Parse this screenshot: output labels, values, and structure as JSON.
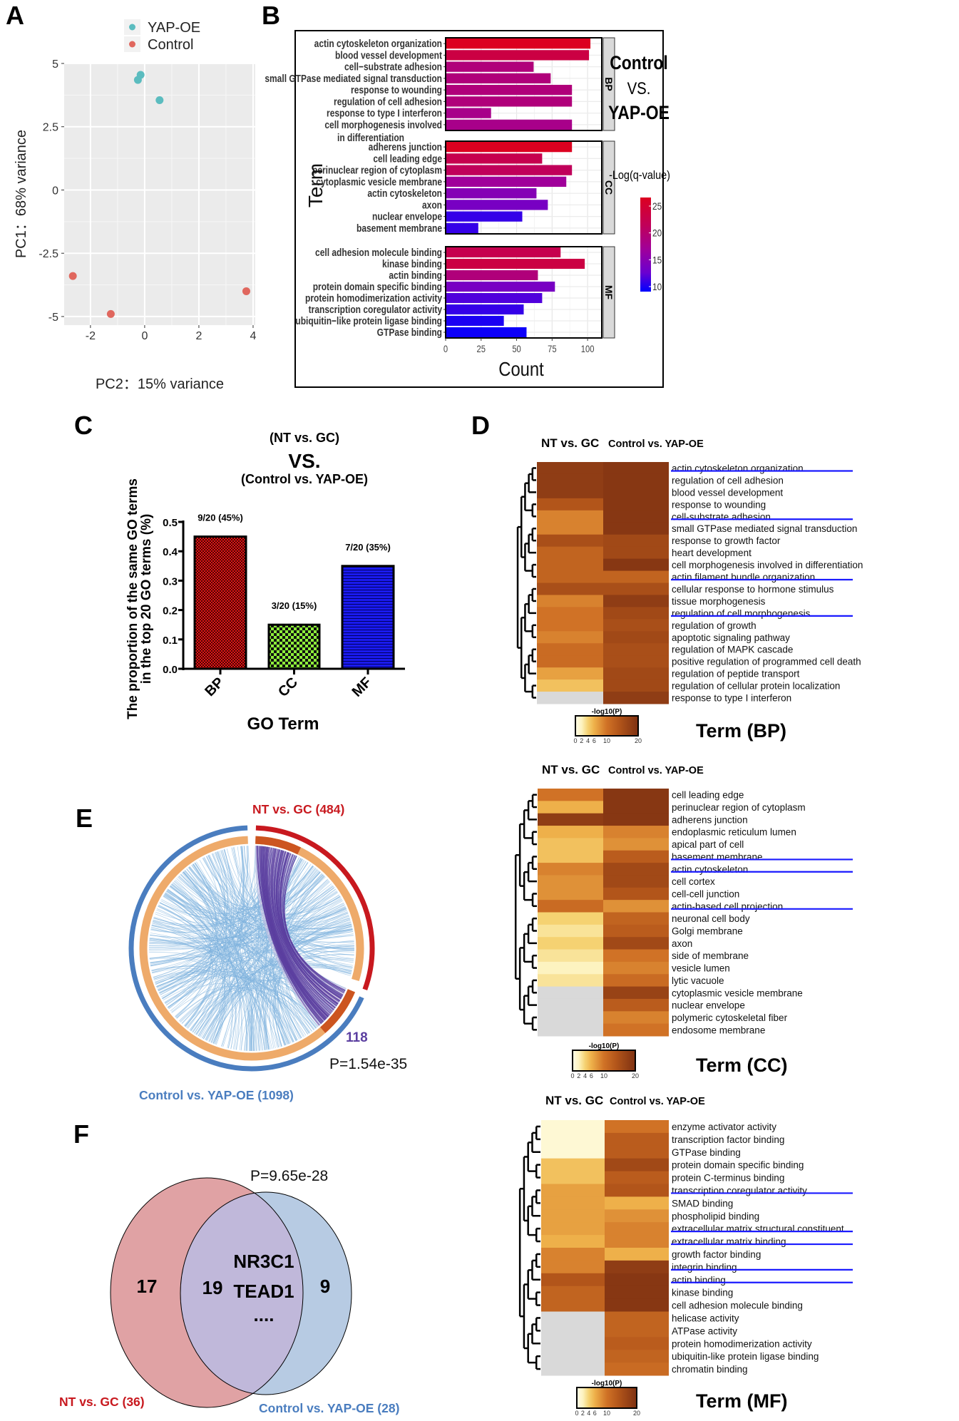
{
  "panel_labels": [
    "A",
    "B",
    "C",
    "D",
    "E",
    "F"
  ],
  "chart_data": [
    {
      "type": "scatter",
      "xlabel": "PC2：15% variance",
      "ylabel": "PC1：68% variance",
      "xlim": [
        -2.97,
        4.08
      ],
      "ylim": [
        -5.34,
        5.0
      ],
      "xticks": [
        "-2",
        "0",
        "2",
        "4"
      ],
      "yticks": [
        "5",
        "2.5",
        "0",
        "-2.5",
        "-5"
      ],
      "legend": [
        {
          "name": "YAP-OE",
          "color": "#5bbcbf"
        },
        {
          "name": "Control",
          "color": "#e0675e"
        }
      ],
      "series": [
        {
          "name": "YAP-OE",
          "points": [
            [
              -0.15,
              4.55
            ],
            [
              -0.25,
              4.35
            ],
            [
              0.55,
              3.55
            ]
          ]
        },
        {
          "name": "Control",
          "points": [
            [
              -2.65,
              -3.4
            ],
            [
              -1.25,
              -4.9
            ],
            [
              3.75,
              -4.0
            ]
          ]
        }
      ]
    },
    {
      "type": "bar",
      "orientation": "horizontal",
      "title_lines": [
        "Control",
        "VS.",
        "YAP-OE"
      ],
      "xlabel": "Count",
      "ylabel": "Term",
      "xlim": [
        0,
        110
      ],
      "xticks": [
        "0",
        "25",
        "50",
        "75",
        "100"
      ],
      "colorbar": {
        "title": "-Log(q-value)",
        "ticks": [
          "25",
          "20",
          "15",
          "10"
        ],
        "range": [
          9,
          26.5
        ]
      },
      "facets": [
        {
          "name": "BP",
          "terms": [
            "actin cytoskeleton organization",
            "blood vessel development",
            "cell−substrate adhesion",
            "small GTPase mediated signal transduction",
            "response to wounding",
            "regulation of cell adhesion",
            "response to type I interferon",
            [
              "cell morphogenesis involved",
              "in differentiation"
            ]
          ],
          "counts": [
            102,
            101,
            62,
            74,
            89,
            89,
            32,
            89
          ],
          "qvalues": [
            26,
            23,
            19,
            19,
            19,
            19,
            18,
            18
          ]
        },
        {
          "name": "CC",
          "terms": [
            "adherens junction",
            "cell leading edge",
            "perinuclear region of cytoplasm",
            "cytoplasmic vesicle membrane",
            "actin cytoskeleton",
            "axon",
            "nuclear envelope",
            "basement membrane"
          ],
          "counts": [
            89,
            68,
            89,
            85,
            64,
            72,
            54,
            23
          ],
          "qvalues": [
            26,
            22,
            21,
            17,
            15,
            14,
            11,
            11
          ]
        },
        {
          "name": "MF",
          "terms": [
            "cell adhesion molecule binding",
            "kinase binding",
            "actin binding",
            "protein domain specific binding",
            "protein homodimerization activity",
            "transcription coregulator activity",
            "ubiquitin−like protein ligase binding",
            "GTPase binding"
          ],
          "counts": [
            81,
            98,
            65,
            77,
            68,
            55,
            41,
            57
          ],
          "qvalues": [
            22,
            23,
            19,
            14,
            12,
            11,
            10,
            9.5
          ]
        }
      ]
    },
    {
      "type": "bar",
      "title_lines": [
        "(NT vs. GC)",
        "VS.",
        "(Control vs. YAP-OE)"
      ],
      "ylabel_lines": [
        "The proportion of the same GO terms",
        "in the top 20 GO terms (%)"
      ],
      "xlabel": "GO Term",
      "categories": [
        "BP",
        "CC",
        "MF"
      ],
      "values": [
        0.45,
        0.15,
        0.35
      ],
      "data_labels": [
        "9/20 (45%)",
        "3/20 (15%)",
        "7/20 (35%)"
      ],
      "colors": [
        "#e01818",
        "#8ef03a",
        "#1a1aee"
      ],
      "ylim": [
        0,
        0.5
      ],
      "yticks": [
        "0.0",
        "0.1",
        "0.2",
        "0.3",
        "0.4",
        "0.5"
      ]
    },
    {
      "type": "heatmap",
      "columns": [
        "NT vs. GC",
        "Control vs. YAP-OE"
      ],
      "colorbar": {
        "title": "-log10(P)",
        "ticks": [
          "0",
          "2",
          "4",
          "6",
          "10",
          "20"
        ],
        "range": [
          0,
          20
        ]
      },
      "panels": [
        {
          "title": "Term (BP)",
          "rows": [
            "actin cytoskeleton organization",
            "regulation of cell adhesion",
            "blood vessel development",
            "response to wounding",
            "cell-substrate adhesion",
            "small GTPase mediated signal transduction",
            "response to growth factor",
            "heart development",
            "cell morphogenesis involved in differentiation",
            "actin filament bundle organization",
            "cellular response to hormone stimulus",
            "tissue morphogenesis",
            "regulation of cell morphogenesis",
            "regulation of growth",
            "apoptotic signaling pathway",
            "regulation of MAPK cascade",
            "positive regulation of programmed cell death",
            "regulation of peptide transport",
            "regulation of cellular protein localization",
            "response to type I interferon"
          ],
          "values": [
            [
              18,
              19
            ],
            [
              18,
              19
            ],
            [
              18,
              19
            ],
            [
              14,
              19
            ],
            [
              9,
              19
            ],
            [
              9,
              19
            ],
            [
              15,
              16
            ],
            [
              12,
              16
            ],
            [
              12,
              19
            ],
            [
              12,
              12
            ],
            [
              15,
              15
            ],
            [
              9,
              18
            ],
            [
              10,
              16
            ],
            [
              10,
              15
            ],
            [
              9,
              16
            ],
            [
              11,
              15
            ],
            [
              11,
              15
            ],
            [
              7,
              16
            ],
            [
              5,
              16
            ],
            [
              null,
              18
            ]
          ],
          "highlighted": [
            0,
            4,
            9,
            12
          ]
        },
        {
          "title": "Term (CC)",
          "rows": [
            "cell leading edge",
            "perinuclear region of cytoplasm",
            "adherens junction",
            "endoplasmic reticulum lumen",
            "apical part of cell",
            "basement membrane",
            "actin cytoskeleton",
            "cell cortex",
            "cell-cell junction",
            "actin-based cell projection",
            "neuronal cell body",
            "Golgi membrane",
            "axon",
            "side of membrane",
            "vesicle lumen",
            "lytic vacuole",
            "cytoplasmic vesicle membrane",
            "nuclear envelope",
            "polymeric cytoskeletal fiber",
            "endosome membrane"
          ],
          "values": [
            [
              10,
              19
            ],
            [
              6,
              19
            ],
            [
              18,
              19
            ],
            [
              6,
              9
            ],
            [
              5,
              8
            ],
            [
              5,
              13
            ],
            [
              9,
              16
            ],
            [
              8,
              16
            ],
            [
              8,
              14
            ],
            [
              11,
              8
            ],
            [
              4,
              12
            ],
            [
              3,
              13
            ],
            [
              4,
              16
            ],
            [
              3,
              10
            ],
            [
              2,
              9
            ],
            [
              3,
              11
            ],
            [
              null,
              17
            ],
            [
              null,
              13
            ],
            [
              null,
              9
            ],
            [
              null,
              10
            ]
          ],
          "highlighted": [
            5,
            6,
            9
          ]
        },
        {
          "title": "Term (MF)",
          "rows": [
            "enzyme activator activity",
            "transcription factor binding",
            "GTPase binding",
            "protein domain specific binding",
            "protein C-terminus binding",
            "transcription coregulator activity",
            "SMAD binding",
            "phospholipid binding",
            "extracellular matrix structural constituent",
            "extracellular matrix binding",
            "growth factor binding",
            "integrin binding",
            "actin binding",
            "kinase binding",
            "cell adhesion molecule binding",
            "helicase activity",
            "ATPase activity",
            "protein homodimerization activity",
            "ubiquitin-like protein ligase binding",
            "chromatin binding"
          ],
          "values": [
            [
              1,
              10
            ],
            [
              1,
              13
            ],
            [
              1,
              13
            ],
            [
              5,
              16
            ],
            [
              5,
              13
            ],
            [
              7,
              14
            ],
            [
              7,
              6
            ],
            [
              7,
              8
            ],
            [
              7,
              9
            ],
            [
              6,
              9
            ],
            [
              9,
              6
            ],
            [
              9,
              18
            ],
            [
              14,
              19
            ],
            [
              12,
              19
            ],
            [
              12,
              19
            ],
            [
              null,
              12
            ],
            [
              null,
              12
            ],
            [
              null,
              13
            ],
            [
              null,
              12
            ],
            [
              null,
              11
            ]
          ],
          "highlighted": [
            5,
            8,
            9,
            11,
            12
          ]
        }
      ]
    },
    {
      "type": "chord",
      "groups": [
        {
          "name": "NT vs. GC (484)",
          "color": "#c8191f"
        },
        {
          "name": "Control vs. YAP-OE (1098)",
          "color": "#4a7dbf"
        }
      ],
      "shared_count": "118",
      "shared_color": "#5b3fa0",
      "p_value": "P=1.54e-35"
    },
    {
      "type": "venn",
      "sets": [
        {
          "name": "NT vs. GC (36)",
          "color": "#c8191f",
          "fill": "#e0a2a4"
        },
        {
          "name": "Control vs. YAP-OE (28)",
          "color": "#4a7dbf",
          "fill": "#b7cbe3"
        }
      ],
      "left_only": "17",
      "overlap": "19",
      "right_only": "9",
      "overlap_genes": [
        "NR3C1",
        "TEAD1",
        "...."
      ],
      "p_value": "P=9.65e-28"
    }
  ]
}
